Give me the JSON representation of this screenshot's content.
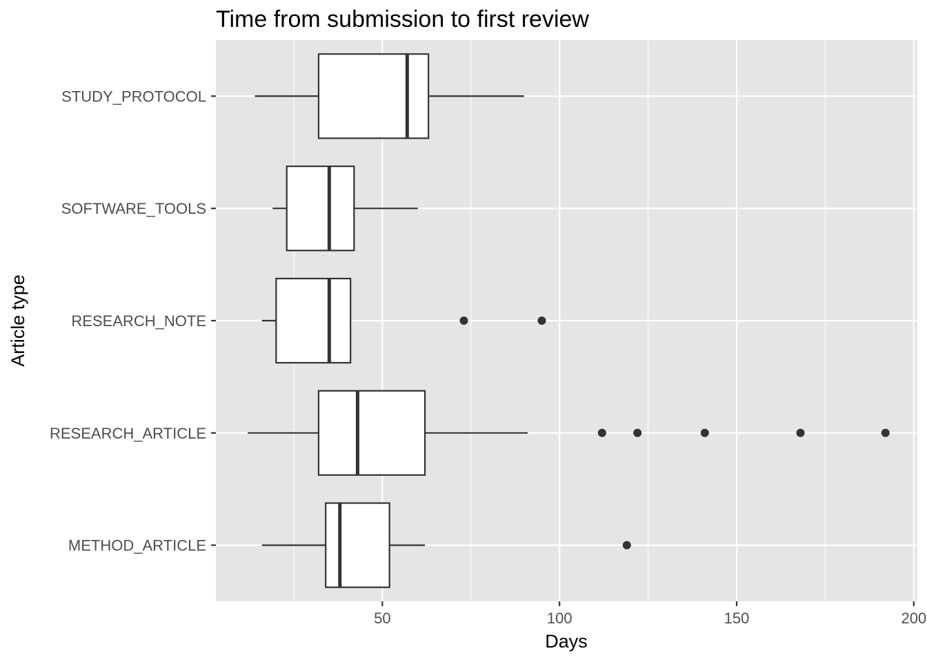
{
  "chart_data": {
    "type": "boxplot",
    "orientation": "horizontal",
    "title": "Time from submission to first review",
    "xlabel": "Days",
    "ylabel": "Article type",
    "xlim": [
      3,
      201
    ],
    "x_ticks": [
      50,
      100,
      150,
      200
    ],
    "x_minor_ticks": [
      25,
      75,
      125,
      175
    ],
    "grid": true,
    "panel_background": "#e5e5e5",
    "grid_color": "#ffffff",
    "box_fill": "#ffffff",
    "box_stroke": "#333333",
    "outlier_color": "#333333",
    "categories": [
      "METHOD_ARTICLE",
      "RESEARCH_ARTICLE",
      "RESEARCH_NOTE",
      "SOFTWARE_TOOLS",
      "STUDY_PROTOCOL"
    ],
    "series": [
      {
        "category": "METHOD_ARTICLE",
        "whisker_low": 16,
        "q1": 34,
        "median": 38,
        "q3": 52,
        "whisker_high": 62,
        "outliers": [
          119
        ]
      },
      {
        "category": "RESEARCH_ARTICLE",
        "whisker_low": 12,
        "q1": 32,
        "median": 43,
        "q3": 62,
        "whisker_high": 91,
        "outliers": [
          112,
          122,
          141,
          168,
          192
        ]
      },
      {
        "category": "RESEARCH_NOTE",
        "whisker_low": 16,
        "q1": 20,
        "median": 35,
        "q3": 41,
        "whisker_high": 41,
        "outliers": [
          73,
          95
        ]
      },
      {
        "category": "SOFTWARE_TOOLS",
        "whisker_low": 19,
        "q1": 23,
        "median": 35,
        "q3": 42,
        "whisker_high": 60,
        "outliers": []
      },
      {
        "category": "STUDY_PROTOCOL",
        "whisker_low": 14,
        "q1": 32,
        "median": 57,
        "q3": 63,
        "whisker_high": 90,
        "outliers": []
      }
    ]
  }
}
